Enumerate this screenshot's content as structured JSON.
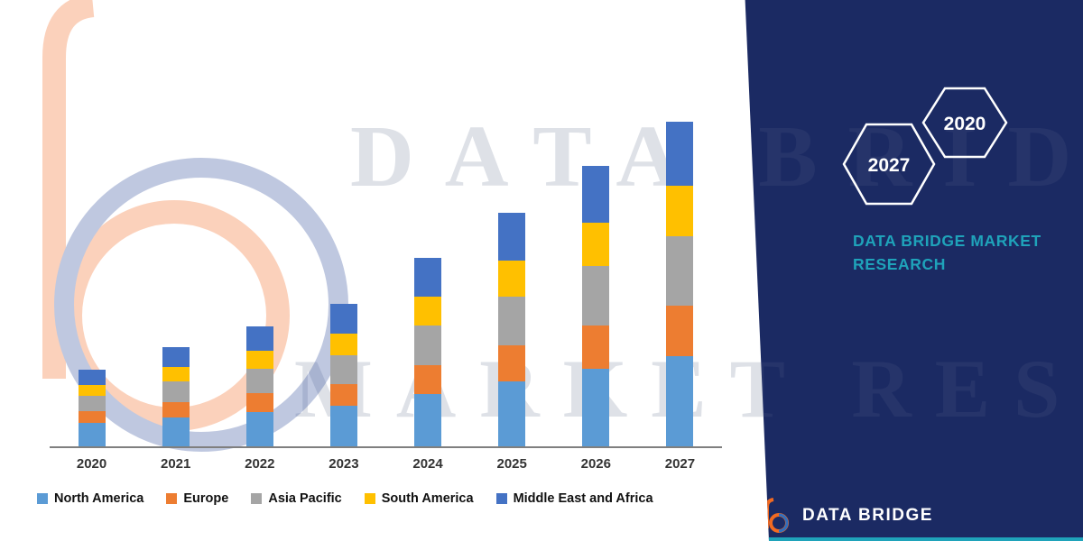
{
  "watermark": {
    "line1": "DATA BRIDGE",
    "line2": "MARKET RESEARCH"
  },
  "chart_data": {
    "type": "bar",
    "stacked": true,
    "title": "",
    "xlabel": "",
    "ylabel": "",
    "grid": false,
    "legend_position": "bottom",
    "categories": [
      "2020",
      "2021",
      "2022",
      "2023",
      "2024",
      "2025",
      "2026",
      "2027"
    ],
    "ylim": [
      0,
      37.5
    ],
    "series": [
      {
        "name": "North America",
        "color": "#5B9BD5",
        "values": [
          2.6,
          3.2,
          3.8,
          4.5,
          5.8,
          7.2,
          8.6,
          10.0
        ]
      },
      {
        "name": "Europe",
        "color": "#ED7D31",
        "values": [
          1.3,
          1.7,
          2.1,
          2.4,
          3.2,
          4.0,
          4.8,
          5.6
        ]
      },
      {
        "name": "Asia Pacific",
        "color": "#A5A5A5",
        "values": [
          1.7,
          2.3,
          2.7,
          3.2,
          4.4,
          5.4,
          6.6,
          7.7
        ]
      },
      {
        "name": "South America",
        "color": "#FFC000",
        "values": [
          1.2,
          1.6,
          2.0,
          2.4,
          3.2,
          4.0,
          4.8,
          5.6
        ]
      },
      {
        "name": "Middle East and Africa",
        "color": "#4472C4",
        "values": [
          1.7,
          2.2,
          2.7,
          3.3,
          4.3,
          5.3,
          6.3,
          7.1
        ]
      }
    ]
  },
  "side_panel": {
    "hexagons": [
      {
        "label": "2027"
      },
      {
        "label": "2020"
      }
    ],
    "brand_heading": "DATA BRIDGE MARKET RESEARCH"
  },
  "footer": {
    "brand": "DATA BRIDGE"
  },
  "colors": {
    "navy": "#1B2A63",
    "teal": "#1FA3BA",
    "watermark_orange": "#F26A21",
    "watermark_blue": "#2F4D9C"
  }
}
